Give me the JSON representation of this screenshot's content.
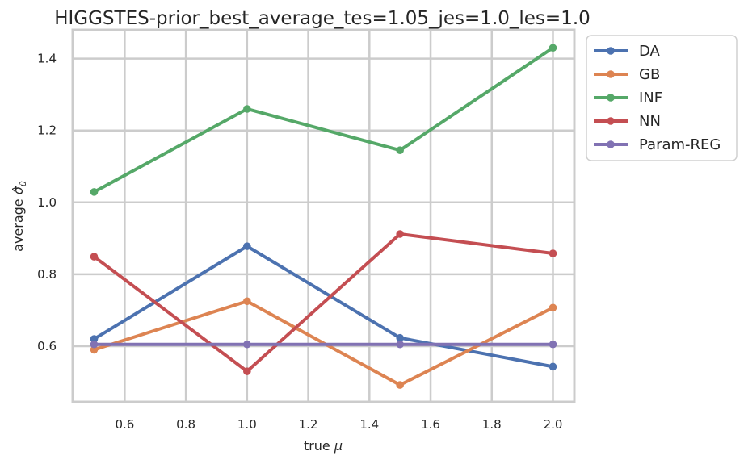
{
  "chart_data": {
    "type": "line",
    "title": "HIGGSTES-prior_best_average_tes=1.05_jes=1.0_les=1.0",
    "xlabel": "true μ",
    "ylabel": "average σ̂_μ̂",
    "x": [
      0.5,
      1.0,
      1.5,
      2.0
    ],
    "xlim": [
      0.43,
      2.07
    ],
    "ylim": [
      0.445,
      1.48
    ],
    "xticks": [
      "0.6",
      "0.8",
      "1.0",
      "1.2",
      "1.4",
      "1.6",
      "1.8",
      "2.0"
    ],
    "yticks": [
      "0.6",
      "0.8",
      "1.0",
      "1.2",
      "1.4"
    ],
    "grid": true,
    "legend_position": "outside-right",
    "series": [
      {
        "name": "DA",
        "color": "#4c72b0",
        "values": [
          0.62,
          0.878,
          0.623,
          0.543
        ]
      },
      {
        "name": "GB",
        "color": "#dd8452",
        "values": [
          0.59,
          0.725,
          0.492,
          0.707
        ]
      },
      {
        "name": "INF",
        "color": "#55a868",
        "values": [
          1.029,
          1.26,
          1.145,
          1.43
        ]
      },
      {
        "name": "NN",
        "color": "#c44e52",
        "values": [
          0.849,
          0.53,
          0.912,
          0.858
        ]
      },
      {
        "name": "Param-REG",
        "color": "#8172b3",
        "values": [
          0.605,
          0.605,
          0.605,
          0.605
        ]
      }
    ]
  }
}
